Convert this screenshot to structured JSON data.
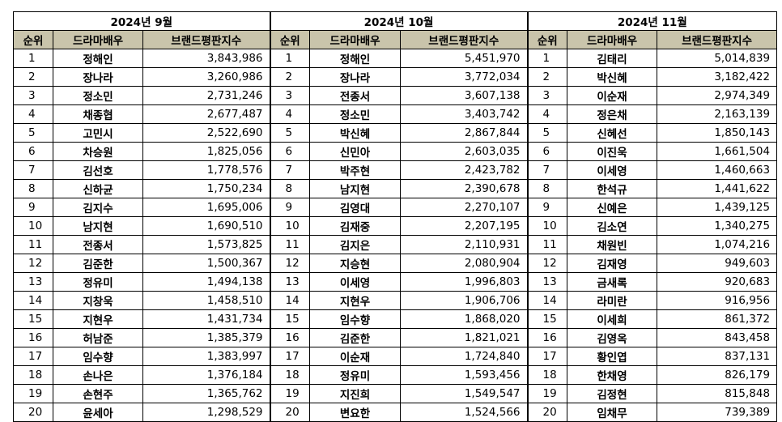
{
  "headers": {
    "rank": "순위",
    "actor": "드라마배우",
    "index": "브랜드평판지수"
  },
  "months": [
    {
      "title": "2024년 9월",
      "rows": [
        {
          "rank": "1",
          "name": "정해인",
          "value": "3,843,986"
        },
        {
          "rank": "2",
          "name": "장나라",
          "value": "3,260,986"
        },
        {
          "rank": "3",
          "name": "정소민",
          "value": "2,731,246"
        },
        {
          "rank": "4",
          "name": "채종협",
          "value": "2,677,487"
        },
        {
          "rank": "5",
          "name": "고민시",
          "value": "2,522,690"
        },
        {
          "rank": "6",
          "name": "차승원",
          "value": "1,825,056"
        },
        {
          "rank": "7",
          "name": "김선호",
          "value": "1,778,576"
        },
        {
          "rank": "8",
          "name": "신하균",
          "value": "1,750,234"
        },
        {
          "rank": "9",
          "name": "김지수",
          "value": "1,695,006"
        },
        {
          "rank": "10",
          "name": "남지현",
          "value": "1,690,510"
        },
        {
          "rank": "11",
          "name": "전종서",
          "value": "1,573,825"
        },
        {
          "rank": "12",
          "name": "김준한",
          "value": "1,500,367"
        },
        {
          "rank": "13",
          "name": "정유미",
          "value": "1,494,138"
        },
        {
          "rank": "14",
          "name": "지창욱",
          "value": "1,458,510"
        },
        {
          "rank": "15",
          "name": "지현우",
          "value": "1,431,734"
        },
        {
          "rank": "16",
          "name": "허남준",
          "value": "1,385,379"
        },
        {
          "rank": "17",
          "name": "임수향",
          "value": "1,383,997"
        },
        {
          "rank": "18",
          "name": "손나은",
          "value": "1,376,184"
        },
        {
          "rank": "19",
          "name": "손현주",
          "value": "1,365,762"
        },
        {
          "rank": "20",
          "name": "윤세아",
          "value": "1,298,529"
        }
      ]
    },
    {
      "title": "2024년 10월",
      "rows": [
        {
          "rank": "1",
          "name": "정해인",
          "value": "5,451,970"
        },
        {
          "rank": "2",
          "name": "장나라",
          "value": "3,772,034"
        },
        {
          "rank": "3",
          "name": "전종서",
          "value": "3,607,138"
        },
        {
          "rank": "4",
          "name": "정소민",
          "value": "3,403,742"
        },
        {
          "rank": "5",
          "name": "박신혜",
          "value": "2,867,844"
        },
        {
          "rank": "6",
          "name": "신민아",
          "value": "2,603,035"
        },
        {
          "rank": "7",
          "name": "박주현",
          "value": "2,423,782"
        },
        {
          "rank": "8",
          "name": "남지현",
          "value": "2,390,678"
        },
        {
          "rank": "9",
          "name": "김영대",
          "value": "2,270,107"
        },
        {
          "rank": "10",
          "name": "김재중",
          "value": "2,207,195"
        },
        {
          "rank": "11",
          "name": "김지은",
          "value": "2,110,931"
        },
        {
          "rank": "12",
          "name": "지승현",
          "value": "2,080,904"
        },
        {
          "rank": "13",
          "name": "이세영",
          "value": "1,996,803"
        },
        {
          "rank": "14",
          "name": "지현우",
          "value": "1,906,706"
        },
        {
          "rank": "15",
          "name": "임수향",
          "value": "1,868,020"
        },
        {
          "rank": "16",
          "name": "김준한",
          "value": "1,821,021"
        },
        {
          "rank": "17",
          "name": "이순재",
          "value": "1,724,840"
        },
        {
          "rank": "18",
          "name": "정유미",
          "value": "1,593,456"
        },
        {
          "rank": "19",
          "name": "지진희",
          "value": "1,549,547"
        },
        {
          "rank": "20",
          "name": "변요한",
          "value": "1,524,566"
        }
      ]
    },
    {
      "title": "2024년 11월",
      "rows": [
        {
          "rank": "1",
          "name": "김태리",
          "value": "5,014,839"
        },
        {
          "rank": "2",
          "name": "박신혜",
          "value": "3,182,422"
        },
        {
          "rank": "3",
          "name": "이순재",
          "value": "2,974,349"
        },
        {
          "rank": "4",
          "name": "정은채",
          "value": "2,163,139"
        },
        {
          "rank": "5",
          "name": "신혜선",
          "value": "1,850,143"
        },
        {
          "rank": "6",
          "name": "이진욱",
          "value": "1,661,504"
        },
        {
          "rank": "7",
          "name": "이세영",
          "value": "1,460,663"
        },
        {
          "rank": "8",
          "name": "한석규",
          "value": "1,441,622"
        },
        {
          "rank": "9",
          "name": "신예은",
          "value": "1,439,125"
        },
        {
          "rank": "10",
          "name": "김소연",
          "value": "1,340,275"
        },
        {
          "rank": "11",
          "name": "채원빈",
          "value": "1,074,216"
        },
        {
          "rank": "12",
          "name": "김재영",
          "value": "949,603"
        },
        {
          "rank": "13",
          "name": "금새록",
          "value": "920,683"
        },
        {
          "rank": "14",
          "name": "라미란",
          "value": "916,956"
        },
        {
          "rank": "15",
          "name": "이세희",
          "value": "861,372"
        },
        {
          "rank": "16",
          "name": "김영옥",
          "value": "843,458"
        },
        {
          "rank": "17",
          "name": "황인엽",
          "value": "837,131"
        },
        {
          "rank": "18",
          "name": "한채영",
          "value": "826,179"
        },
        {
          "rank": "19",
          "name": "김정현",
          "value": "815,848"
        },
        {
          "rank": "20",
          "name": "임채무",
          "value": "739,389"
        }
      ]
    }
  ]
}
